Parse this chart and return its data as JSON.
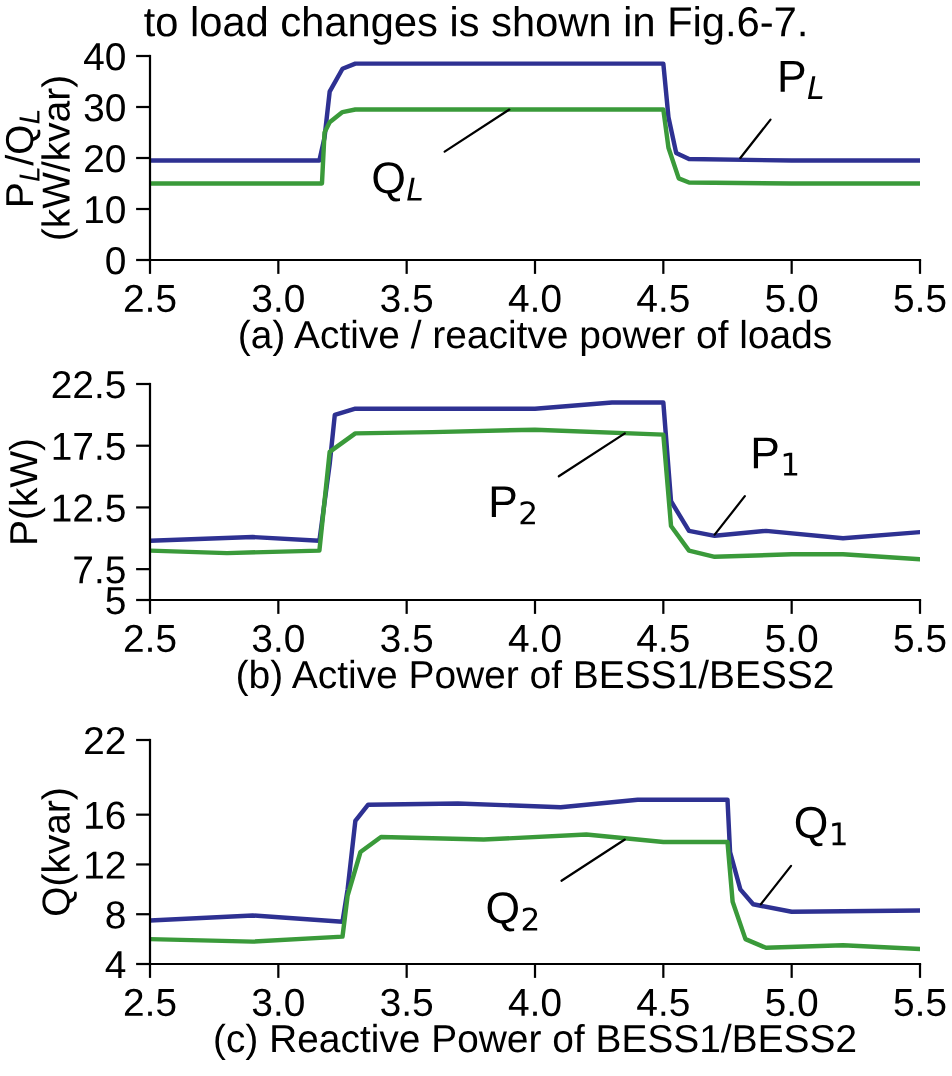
{
  "chart_data": [
    {
      "type": "line",
      "xlabel": "(a) Active / reacitve power of loads",
      "ylabel": "P$_{L}$/Q$_{L}$\n(kW/kvar)",
      "xlim": [
        2.5,
        5.5
      ],
      "xticks": [
        2.5,
        {
          "value": 3,
          "label": "3.0"
        },
        3.5,
        {
          "value": 4,
          "label": "4.0"
        },
        4.5,
        {
          "value": 5,
          "label": "5.0"
        },
        5.5
      ],
      "ylim": [
        0,
        40
      ],
      "yticks": [
        0,
        10,
        20,
        30,
        40
      ],
      "grid": false,
      "legend": false,
      "series": [
        {
          "color": "#2e3192",
          "x": [
            2.5,
            3.16,
            3.18,
            3.2,
            3.25,
            3.3,
            4.0,
            4.5,
            4.52,
            4.55,
            4.6,
            5.0,
            5.5
          ],
          "values": [
            19.5,
            19.5,
            24,
            33,
            37.5,
            38.5,
            38.5,
            38.5,
            28,
            21,
            19.8,
            19.5,
            19.5
          ]
        },
        {
          "color": "#3a9a3a",
          "x": [
            2.5,
            3.17,
            3.18,
            3.2,
            3.25,
            3.3,
            4.0,
            4.5,
            4.52,
            4.56,
            4.6,
            5.0,
            5.5
          ],
          "values": [
            15,
            15,
            25,
            27,
            29,
            29.5,
            29.5,
            29.5,
            22,
            16,
            15.2,
            15,
            15
          ]
        }
      ],
      "annotations": [
        "to load changes is shown in Fig.6-7.",
        {
          "text": "P$_{L}$",
          "x": 4.8,
          "y": 20
        },
        {
          "text": "Q$_{L}$",
          "x": 3.9,
          "y": 29.5
        }
      ]
    },
    {
      "type": "line",
      "xlabel": "(b) Active Power of BESS1/BESS2",
      "ylabel": "P(kW)",
      "xlim": [
        2.5,
        5.5
      ],
      "xticks": [
        2.5,
        {
          "value": 3,
          "label": "3.0"
        },
        3.5,
        {
          "value": 4,
          "label": "4.0"
        },
        4.5,
        {
          "value": 5,
          "label": "5.0"
        },
        5.5
      ],
      "ylim": [
        5,
        22.5
      ],
      "yticks": [
        5,
        7.5,
        12.5,
        17.5,
        22.5
      ],
      "grid": false,
      "legend": false,
      "series": [
        {
          "color": "#2e3192",
          "x": [
            2.5,
            2.9,
            3.16,
            3.2,
            3.22,
            3.3,
            3.6,
            4.0,
            4.3,
            4.5,
            4.53,
            4.6,
            4.7,
            4.9,
            5.2,
            5.5
          ],
          "values": [
            9.8,
            10.1,
            9.8,
            16,
            20,
            20.5,
            20.5,
            20.5,
            21,
            21,
            13,
            10.6,
            10.2,
            10.6,
            10,
            10.5
          ]
        },
        {
          "color": "#3a9a3a",
          "x": [
            2.5,
            2.8,
            3.16,
            3.2,
            3.3,
            3.6,
            4.0,
            4.5,
            4.53,
            4.6,
            4.7,
            5.0,
            5.2,
            5.5
          ],
          "values": [
            9.0,
            8.8,
            9.0,
            17,
            18.5,
            18.6,
            18.8,
            18.4,
            11,
            9,
            8.5,
            8.7,
            8.7,
            8.3
          ]
        }
      ],
      "annotations": [
        {
          "text": "P$_{1}$",
          "x": 4.7,
          "y": 10.3
        },
        {
          "text": "P$_{2}$",
          "x": 4.35,
          "y": 18.5
        }
      ]
    },
    {
      "type": "line",
      "xlabel": "(c) Reactive Power of BESS1/BESS2",
      "ylabel": "Q(kvar)",
      "xlim": [
        2.5,
        5.5
      ],
      "xticks": [
        2.5,
        {
          "value": 3,
          "label": "3.0"
        },
        3.5,
        {
          "value": 4,
          "label": "4.0"
        },
        4.5,
        {
          "value": 5,
          "label": "5.0"
        },
        5.5
      ],
      "ylim": [
        4,
        22
      ],
      "yticks": [
        4,
        8,
        12,
        16,
        22
      ],
      "grid": false,
      "legend": false,
      "series": [
        {
          "color": "#2e3192",
          "x": [
            2.5,
            2.9,
            3.25,
            3.27,
            3.3,
            3.35,
            3.7,
            4.1,
            4.4,
            4.75,
            4.76,
            4.8,
            4.85,
            5.0,
            5.5
          ],
          "values": [
            7.5,
            7.9,
            7.4,
            10,
            15.5,
            16.8,
            16.9,
            16.6,
            17.2,
            17.2,
            13,
            10,
            8.8,
            8.2,
            8.3
          ]
        },
        {
          "color": "#3a9a3a",
          "x": [
            2.5,
            2.9,
            3.25,
            3.27,
            3.32,
            3.4,
            3.8,
            4.2,
            4.5,
            4.75,
            4.77,
            4.82,
            4.9,
            5.2,
            5.5
          ],
          "values": [
            6,
            5.8,
            6.2,
            9.5,
            13,
            14.2,
            14,
            14.4,
            13.8,
            13.8,
            9,
            6,
            5.3,
            5.5,
            5.2
          ]
        }
      ],
      "annotations": [
        {
          "text": "Q$_{1}$",
          "x": 4.88,
          "y": 8.8
        },
        {
          "text": "Q$_{2}$",
          "x": 4.35,
          "y": 14
        }
      ]
    }
  ]
}
